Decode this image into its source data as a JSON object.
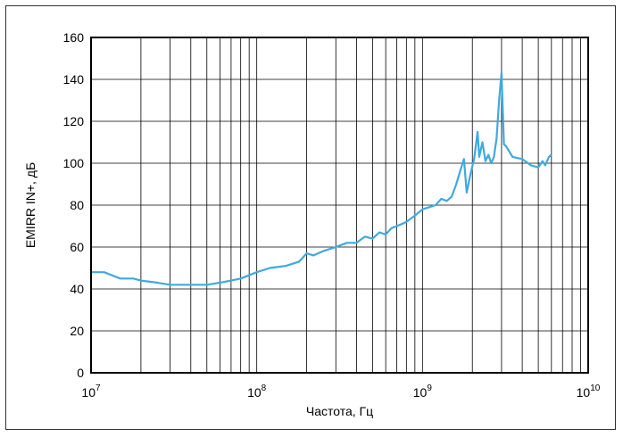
{
  "chart_data": {
    "type": "line",
    "title": "",
    "xlabel": "Частота, Гц",
    "ylabel": "EMIRR IN+, дБ",
    "xscale": "log",
    "xlim": [
      10000000,
      10000000000
    ],
    "ylim": [
      0,
      160
    ],
    "grid": true,
    "legend": "none",
    "yticks": [
      "0",
      "20",
      "40",
      "60",
      "80",
      "100",
      "120",
      "140",
      "160"
    ],
    "xticks": [
      {
        "base": "10",
        "exp": "7"
      },
      {
        "base": "10",
        "exp": "8"
      },
      {
        "base": "10",
        "exp": "9"
      },
      {
        "base": "10",
        "exp": "10"
      }
    ],
    "series": [
      {
        "color": "#3fa9e0",
        "x": [
          10000000,
          12000000,
          15000000,
          18000000,
          20000000,
          25000000,
          30000000,
          40000000,
          50000000,
          60000000,
          70000000,
          80000000,
          100000000,
          120000000,
          150000000,
          180000000,
          200000000,
          220000000,
          250000000,
          300000000,
          350000000,
          400000000,
          450000000,
          500000000,
          550000000,
          600000000,
          650000000,
          700000000,
          750000000,
          800000000,
          900000000,
          1000000000,
          1100000000,
          1200000000,
          1300000000,
          1400000000,
          1500000000,
          1600000000,
          1700000000,
          1780000000,
          1850000000,
          1950000000,
          2050000000,
          2150000000,
          2200000000,
          2300000000,
          2400000000,
          2500000000,
          2600000000,
          2700000000,
          2800000000,
          2900000000,
          3000000000,
          3100000000,
          3200000000,
          3500000000,
          4000000000,
          4500000000,
          5000000000,
          5300000000,
          5500000000,
          5800000000,
          6000000000
        ],
        "y": [
          48,
          48,
          45,
          45,
          44,
          43,
          42,
          42,
          42,
          43,
          44,
          45,
          48,
          50,
          51,
          53,
          57,
          56,
          58,
          60,
          62,
          62,
          65,
          64,
          67,
          66,
          69,
          70,
          71,
          72,
          75,
          78,
          79,
          80,
          83,
          82,
          84,
          90,
          97,
          102,
          86,
          95,
          102,
          115,
          103,
          110,
          101,
          104,
          100,
          103,
          112,
          130,
          143,
          109,
          108,
          103,
          102,
          99,
          98,
          101,
          99,
          103,
          104
        ]
      }
    ]
  }
}
